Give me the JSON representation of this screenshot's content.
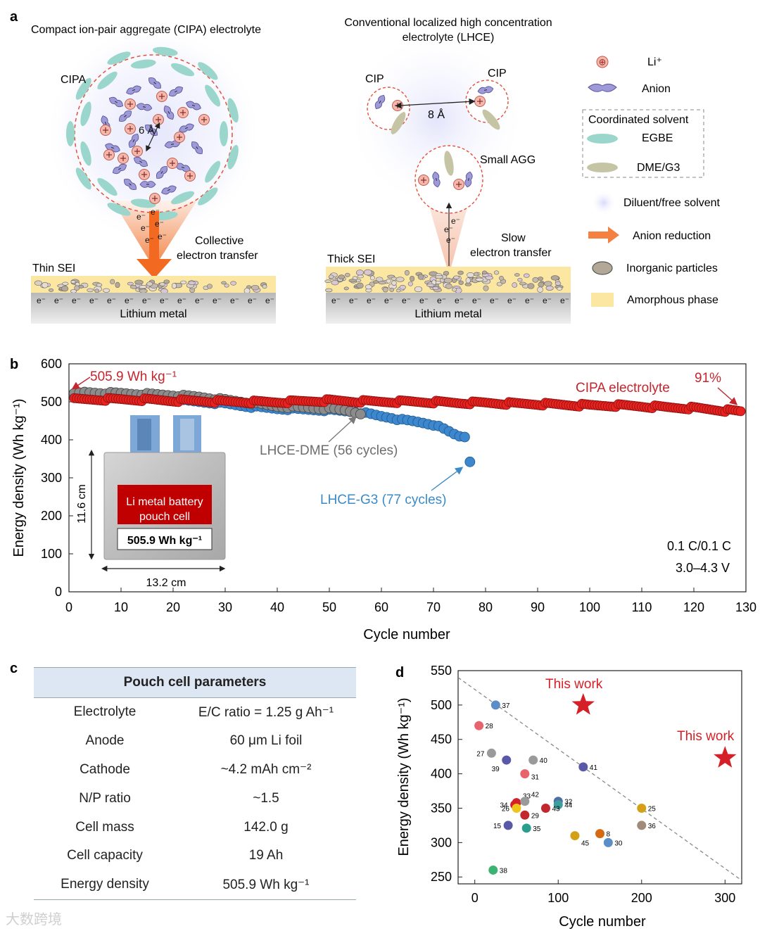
{
  "panel_a": {
    "letter": "a",
    "left_title": "Compact ion-pair aggregate (CIPA) electrolyte",
    "cipa_label": "CIPA",
    "distance_6": "6 Å",
    "collective_line1": "Collective",
    "collective_line2": "electron transfer",
    "thin_sei": "Thin SEI",
    "lithium_metal_left": "Lithium metal",
    "right_title_line1": "Conventional localized high concentration",
    "right_title_line2": "electrolyte (LHCE)",
    "cip_left": "CIP",
    "cip_right": "CIP",
    "distance_8": "8 Å",
    "small_agg": "Small AGG",
    "slow_line1": "Slow",
    "slow_line2": "electron transfer",
    "thick_sei": "Thick SEI",
    "lithium_metal_right": "Lithium metal",
    "electron_symbol": "e⁻",
    "legend": {
      "li": "Li⁺",
      "anion": "Anion",
      "coordinated_solvent": "Coordinated solvent",
      "egbe": "EGBE",
      "dme_g3": "DME/G3",
      "diluent": "Diluent/free solvent",
      "anion_reduction": "Anion reduction",
      "inorganic": "Inorganic particles",
      "amorphous": "Amorphous phase"
    }
  },
  "panel_b": {
    "letter": "b",
    "annot_start": "505.9 Wh kg⁻¹",
    "annot_cipa": "CIPA electrolyte",
    "annot_91": "91%",
    "annot_dme": "LHCE-DME (56 cycles)",
    "annot_g3": "LHCE-G3 (77 cycles)",
    "cond1": "0.1 C/0.1 C",
    "cond2": "3.0–4.3 V",
    "inset_label1": "Li metal battery",
    "inset_label2": "pouch cell",
    "inset_energy": "505.9 Wh kg⁻¹",
    "inset_height": "11.6 cm",
    "inset_width": "13.2 cm"
  },
  "panel_c": {
    "letter": "c",
    "header": "Pouch cell parameters",
    "rows": [
      {
        "name": "Electrolyte",
        "value": "E/C ratio = 1.25 g Ah⁻¹"
      },
      {
        "name": "Anode",
        "value": "60 μm Li foil"
      },
      {
        "name": "Cathode",
        "value": "~4.2 mAh cm⁻²"
      },
      {
        "name": "N/P ratio",
        "value": "~1.5"
      },
      {
        "name": "Cell mass",
        "value": "142.0 g"
      },
      {
        "name": "Cell capacity",
        "value": "19 Ah"
      },
      {
        "name": "Energy density",
        "value": "505.9 Wh kg⁻¹"
      }
    ]
  },
  "panel_d": {
    "letter": "d",
    "this_work_label": "This work"
  },
  "watermark": "大数跨境",
  "chart_data": [
    {
      "type": "scatter",
      "xlabel": "Cycle number",
      "ylabel": "Energy density (Wh kg⁻¹)",
      "xlim": [
        0,
        130
      ],
      "ylim": [
        0,
        600
      ],
      "xticks": [
        0,
        10,
        20,
        30,
        40,
        50,
        60,
        70,
        80,
        90,
        100,
        110,
        120,
        130
      ],
      "yticks": [
        0,
        100,
        200,
        300,
        400,
        500,
        600
      ],
      "series": [
        {
          "name": "CIPA electrolyte",
          "color": "#e8231f",
          "points": [
            [
              1,
              506
            ],
            [
              5,
              506
            ],
            [
              10,
              506
            ],
            [
              15,
              505
            ],
            [
              20,
              503
            ],
            [
              25,
              502
            ],
            [
              30,
              500
            ],
            [
              40,
              499
            ],
            [
              50,
              503
            ],
            [
              55,
              501
            ],
            [
              60,
              500
            ],
            [
              65,
              500
            ],
            [
              70,
              499
            ],
            [
              75,
              497
            ],
            [
              80,
              497
            ],
            [
              85,
              495
            ],
            [
              90,
              494
            ],
            [
              95,
              492
            ],
            [
              100,
              490
            ],
            [
              105,
              490
            ],
            [
              110,
              488
            ],
            [
              115,
              485
            ],
            [
              120,
              483
            ],
            [
              125,
              478
            ],
            [
              129,
              474
            ]
          ]
        },
        {
          "name": "LHCE-DME",
          "color": "#8c8c8c",
          "points": [
            [
              1,
              520
            ],
            [
              3,
              525
            ],
            [
              5,
              524
            ],
            [
              10,
              522
            ],
            [
              15,
              520
            ],
            [
              20,
              517
            ],
            [
              25,
              513
            ],
            [
              30,
              505
            ],
            [
              35,
              497
            ],
            [
              40,
              488
            ],
            [
              45,
              485
            ],
            [
              50,
              482
            ],
            [
              53,
              478
            ],
            [
              56,
              470
            ]
          ]
        },
        {
          "name": "LHCE-G3",
          "color": "#3d87cf",
          "points": [
            [
              1,
              515
            ],
            [
              5,
              513
            ],
            [
              10,
              511
            ],
            [
              15,
              508
            ],
            [
              20,
              505
            ],
            [
              25,
              500
            ],
            [
              30,
              495
            ],
            [
              35,
              487
            ],
            [
              40,
              482
            ],
            [
              45,
              480
            ],
            [
              50,
              478
            ],
            [
              55,
              474
            ],
            [
              58,
              467
            ],
            [
              60,
              462
            ],
            [
              62,
              458
            ],
            [
              64,
              452
            ],
            [
              66,
              449
            ],
            [
              68,
              445
            ],
            [
              70,
              440
            ],
            [
              72,
              428
            ],
            [
              74,
              415
            ],
            [
              75,
              410
            ],
            [
              76,
              409
            ],
            [
              77,
              342
            ]
          ]
        }
      ]
    },
    {
      "type": "scatter",
      "xlabel": "Cycle number",
      "ylabel": "Energy density (Wh kg⁻¹)",
      "xlim": [
        -20,
        320
      ],
      "ylim": [
        240,
        550
      ],
      "xticks": [
        0,
        100,
        200,
        300
      ],
      "yticks": [
        250,
        300,
        350,
        400,
        450,
        500,
        550
      ],
      "trendline": [
        [
          -20,
          540
        ],
        [
          320,
          245
        ]
      ],
      "points": [
        {
          "label": "37",
          "x": 25,
          "y": 500,
          "color": "#5b8ec7"
        },
        {
          "label": "28",
          "x": 5,
          "y": 470,
          "color": "#e8636c"
        },
        {
          "label": "27",
          "x": 20,
          "y": 430,
          "color": "#9a9a9a"
        },
        {
          "label": "39",
          "x": 38,
          "y": 420,
          "color": "#5959a8"
        },
        {
          "label": "40",
          "x": 70,
          "y": 420,
          "color": "#9a9a9a"
        },
        {
          "label": "41",
          "x": 130,
          "y": 410,
          "color": "#5959a8"
        },
        {
          "label": "31",
          "x": 60,
          "y": 400,
          "color": "#e8636c"
        },
        {
          "label": "33",
          "x": 50,
          "y": 358,
          "color": "#d62028"
        },
        {
          "label": "42",
          "x": 60,
          "y": 360,
          "color": "#9a9a9a"
        },
        {
          "label": "34",
          "x": 48,
          "y": 355,
          "color": "#d62028"
        },
        {
          "label": "26",
          "x": 50,
          "y": 350,
          "color": "#f0c419"
        },
        {
          "label": "32",
          "x": 100,
          "y": 360,
          "color": "#4e6fa3"
        },
        {
          "label": "44",
          "x": 100,
          "y": 355,
          "color": "#3e9e9e"
        },
        {
          "label": "43",
          "x": 85,
          "y": 350,
          "color": "#c1272d"
        },
        {
          "label": "29",
          "x": 60,
          "y": 340,
          "color": "#c1272d"
        },
        {
          "label": "15",
          "x": 40,
          "y": 325,
          "color": "#5959a8"
        },
        {
          "label": "35",
          "x": 62,
          "y": 321,
          "color": "#2a9d8f"
        },
        {
          "label": "45",
          "x": 120,
          "y": 310,
          "color": "#d4a017"
        },
        {
          "label": "8",
          "x": 150,
          "y": 313,
          "color": "#d66a12"
        },
        {
          "label": "30",
          "x": 160,
          "y": 300,
          "color": "#5b8ec7"
        },
        {
          "label": "25",
          "x": 200,
          "y": 350,
          "color": "#d4a017"
        },
        {
          "label": "36",
          "x": 200,
          "y": 325,
          "color": "#a08a7a"
        },
        {
          "label": "38",
          "x": 22,
          "y": 260,
          "color": "#3cb371"
        }
      ],
      "this_work": [
        [
          130,
          500
        ],
        [
          300,
          423
        ]
      ]
    }
  ]
}
